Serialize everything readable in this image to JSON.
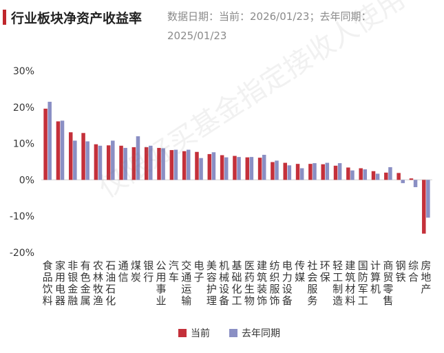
{
  "header": {
    "title": "行业板块净资产收益率",
    "date_note": "数据日期：当前：2026/01/23；去年同期：2025/01/23"
  },
  "watermark": "仅限好买基金指定接收人使用",
  "colors": {
    "current": "#c4303a",
    "previous": "#8a8fc4",
    "accent": "#c0272d"
  },
  "chart_data": {
    "type": "bar",
    "ylim": [
      -20,
      30
    ],
    "yticks": [
      "30%",
      "20%",
      "10%",
      "0%",
      "-10%",
      "-20%"
    ],
    "ytick_values": [
      30,
      20,
      10,
      0,
      -10,
      -20
    ],
    "grid": false,
    "legend_position": "bottom",
    "categories": [
      "食品饮料",
      "家用电器",
      "非银金融",
      "有色金属",
      "农林牧渔",
      "石油石化",
      "通信",
      "煤炭",
      "银行",
      "公用事业",
      "汽车",
      "交通运输",
      "电子",
      "美容护理",
      "机械设备",
      "基础化工",
      "医药生物",
      "建筑装饰",
      "纺织服饰",
      "电力设备",
      "传媒",
      "社会服务",
      "环保",
      "轻工制造",
      "建筑材料",
      "国防军工",
      "计算机",
      "商贸零售",
      "钢铁",
      "综合",
      "房地产"
    ],
    "series": [
      {
        "name": "当前",
        "values": [
          19.6,
          16.1,
          13.1,
          12.9,
          9.8,
          9.5,
          9.4,
          9.0,
          9.0,
          8.8,
          8.2,
          7.9,
          7.7,
          7.1,
          6.8,
          6.6,
          6.2,
          6.1,
          4.9,
          4.7,
          4.4,
          4.4,
          4.3,
          3.9,
          3.4,
          3.2,
          2.4,
          2.0,
          1.9,
          0.4,
          -14.8
        ]
      },
      {
        "name": "去年同期",
        "values": [
          21.5,
          16.3,
          10.8,
          10.6,
          9.4,
          10.8,
          8.8,
          12.0,
          9.4,
          8.7,
          8.3,
          8.3,
          6.0,
          7.6,
          6.2,
          6.3,
          6.3,
          6.9,
          5.3,
          4.0,
          3.2,
          4.6,
          4.7,
          4.6,
          2.6,
          2.9,
          1.7,
          3.5,
          -0.9,
          -2.0,
          -10.4
        ]
      }
    ]
  }
}
